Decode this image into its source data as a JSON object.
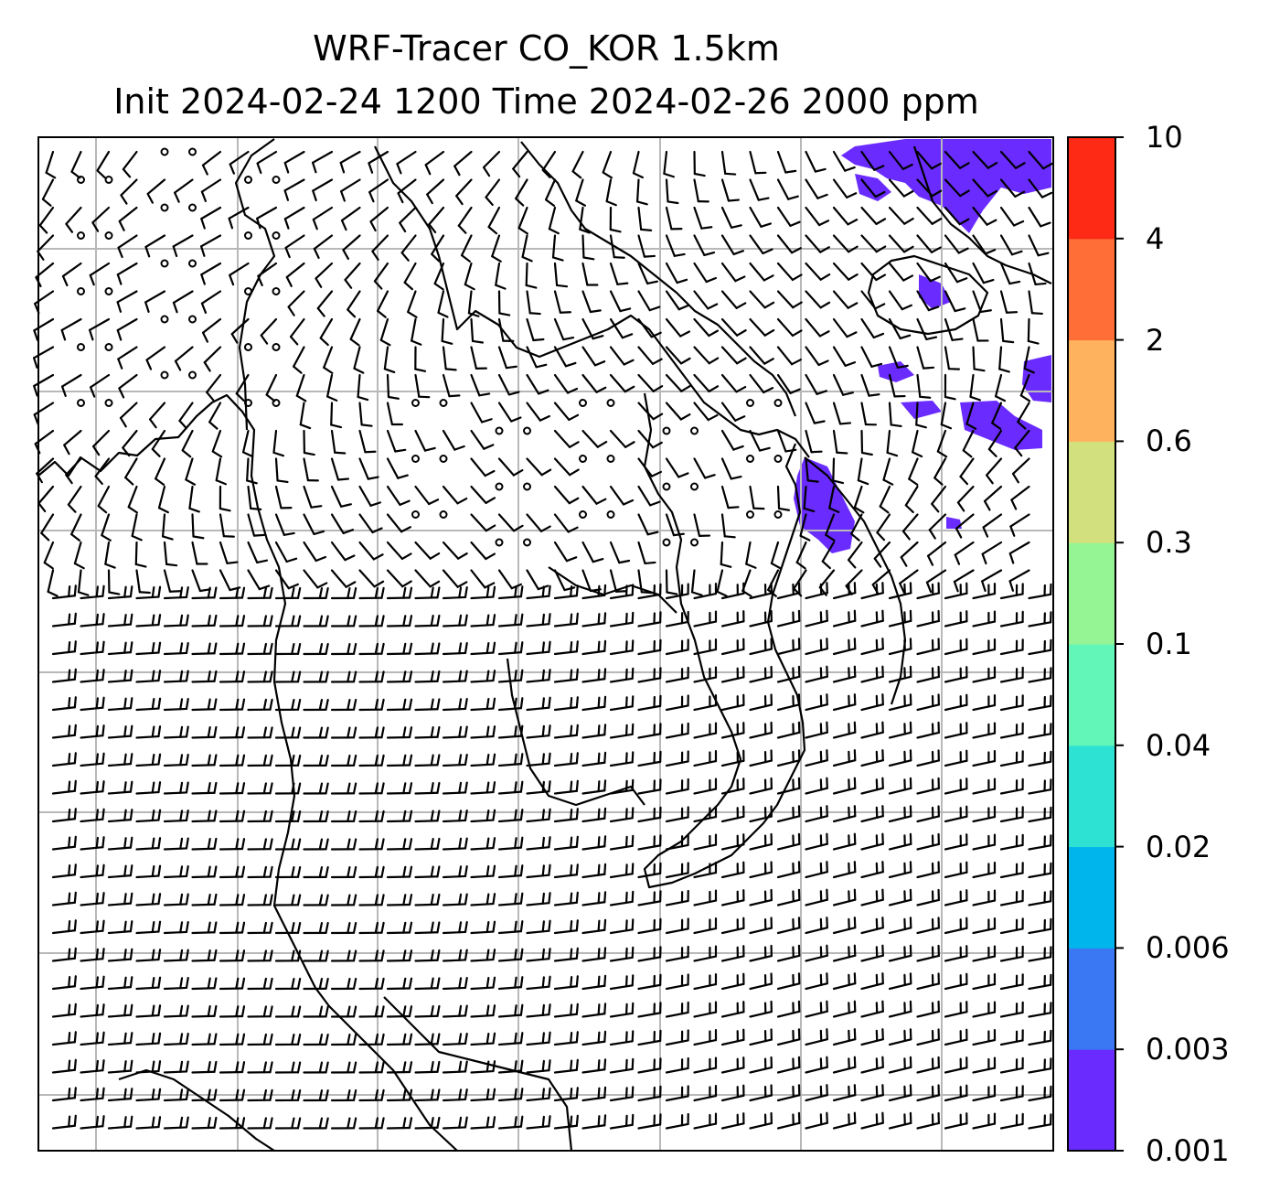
{
  "title": {
    "line1": "WRF-Tracer CO_KOR 1.5km",
    "line2": "Init 2024-02-24 1200 Time 2024-02-26 2000 ppm"
  },
  "map": {
    "grid": true,
    "gridlines_x_count": 7,
    "gridlines_y_count": 7,
    "wind_barbs": true,
    "coastlines": true,
    "tracer_color": "#6a2bff"
  },
  "colorbar": {
    "levels": [
      "0.001",
      "0.003",
      "0.006",
      "0.02",
      "0.04",
      "0.1",
      "0.3",
      "0.6",
      "2",
      "4",
      "10"
    ],
    "colors": [
      "#6a2bff",
      "#3a77f2",
      "#00b4ec",
      "#2ee2d3",
      "#62f7b8",
      "#95f493",
      "#d3e07e",
      "#ffb25e",
      "#ff6e37",
      "#ff2a15"
    ]
  }
}
